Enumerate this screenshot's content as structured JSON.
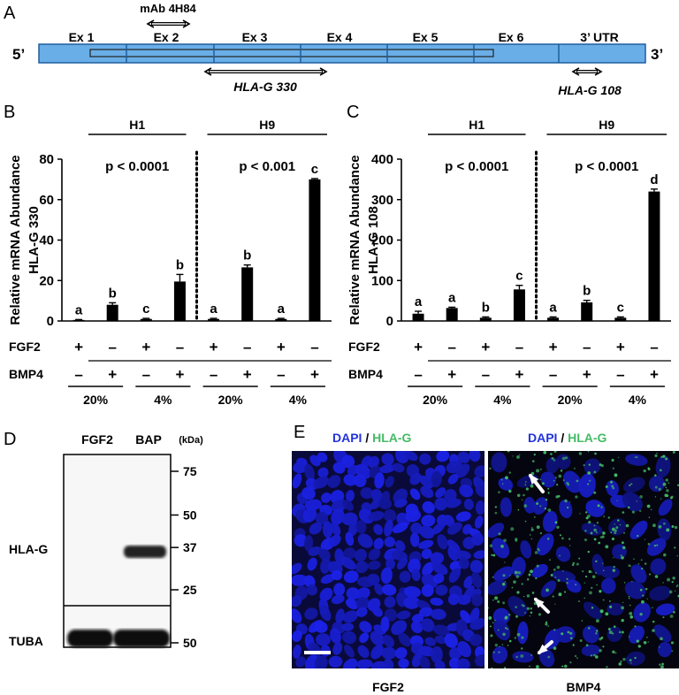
{
  "panel_a": {
    "letter": "A",
    "exons": [
      "Ex 1",
      "Ex 2",
      "Ex 3",
      "Ex 4",
      "Ex 5",
      "Ex 6"
    ],
    "utr": "3’ UTR",
    "five_prime": "5’",
    "three_prime": "3’",
    "antibody": "mAb 4H84",
    "probe1": "HLA-G 330",
    "probe2": "HLA-G 108",
    "colors": {
      "gene_fill": "#6aaee8",
      "gene_stroke": "#1f5e9e"
    }
  },
  "panel_b": {
    "letter": "B",
    "groups": [
      "H1",
      "H9"
    ],
    "pvalues": [
      "p < 0.0001",
      "p < 0.001"
    ],
    "chart_data": {
      "type": "bar",
      "ylabel": "Relative mRNA Abundance",
      "ylabel2": "HLA-G 330",
      "ylim": [
        0,
        80
      ],
      "yticks": [
        0,
        20,
        40,
        60,
        80
      ],
      "values": [
        0.5,
        8,
        1,
        19.5,
        1,
        26.5,
        1,
        70
      ],
      "errors": [
        0.2,
        1,
        0.3,
        3.5,
        0.3,
        1.2,
        0.3,
        0.4
      ],
      "letters": [
        "a",
        "b",
        "c",
        "b",
        "a",
        "b",
        "a",
        "c"
      ]
    }
  },
  "panel_c": {
    "letter": "C",
    "groups": [
      "H1",
      "H9"
    ],
    "pvalues": [
      "p < 0.0001",
      "p < 0.0001"
    ],
    "chart_data": {
      "type": "bar",
      "ylabel": "Relative mRNA Abundance",
      "ylabel2": "HLA-G 108",
      "ylim": [
        0,
        400
      ],
      "yticks": [
        0,
        100,
        200,
        300,
        400
      ],
      "values": [
        18,
        32,
        8,
        78,
        8,
        46,
        8,
        320
      ],
      "errors": [
        6,
        2,
        2,
        10,
        2,
        5,
        2,
        6
      ],
      "letters": [
        "a",
        "a",
        "b",
        "c",
        "a",
        "b",
        "c",
        "d"
      ]
    }
  },
  "conditions": {
    "fgf2_label": "FGF2",
    "bmp4_label": "BMP4",
    "fgf2": [
      "+",
      "–",
      "+",
      "–",
      "+",
      "–",
      "+",
      "–"
    ],
    "bmp4": [
      "–",
      "+",
      "–",
      "+",
      "–",
      "+",
      "–",
      "+"
    ],
    "oxygen": [
      "20%",
      "4%",
      "20%",
      "4%"
    ]
  },
  "panel_d": {
    "letter": "D",
    "lanes": [
      "FGF2",
      "BAP"
    ],
    "unit": "(kDa)",
    "markers": [
      "75",
      "50",
      "37",
      "25"
    ],
    "marker_kda": [
      75,
      50,
      37,
      25
    ],
    "band_label": "HLA-G",
    "loading_label": "TUBA",
    "loading_marker": "50"
  },
  "panel_e": {
    "letter": "E",
    "dapi": "DAPI",
    "slash": "/",
    "hlag": "HLA-G",
    "captions": [
      "FGF2",
      "BMP4"
    ],
    "colors": {
      "dapi": "#2233dd",
      "hlag": "#44bb66"
    }
  }
}
